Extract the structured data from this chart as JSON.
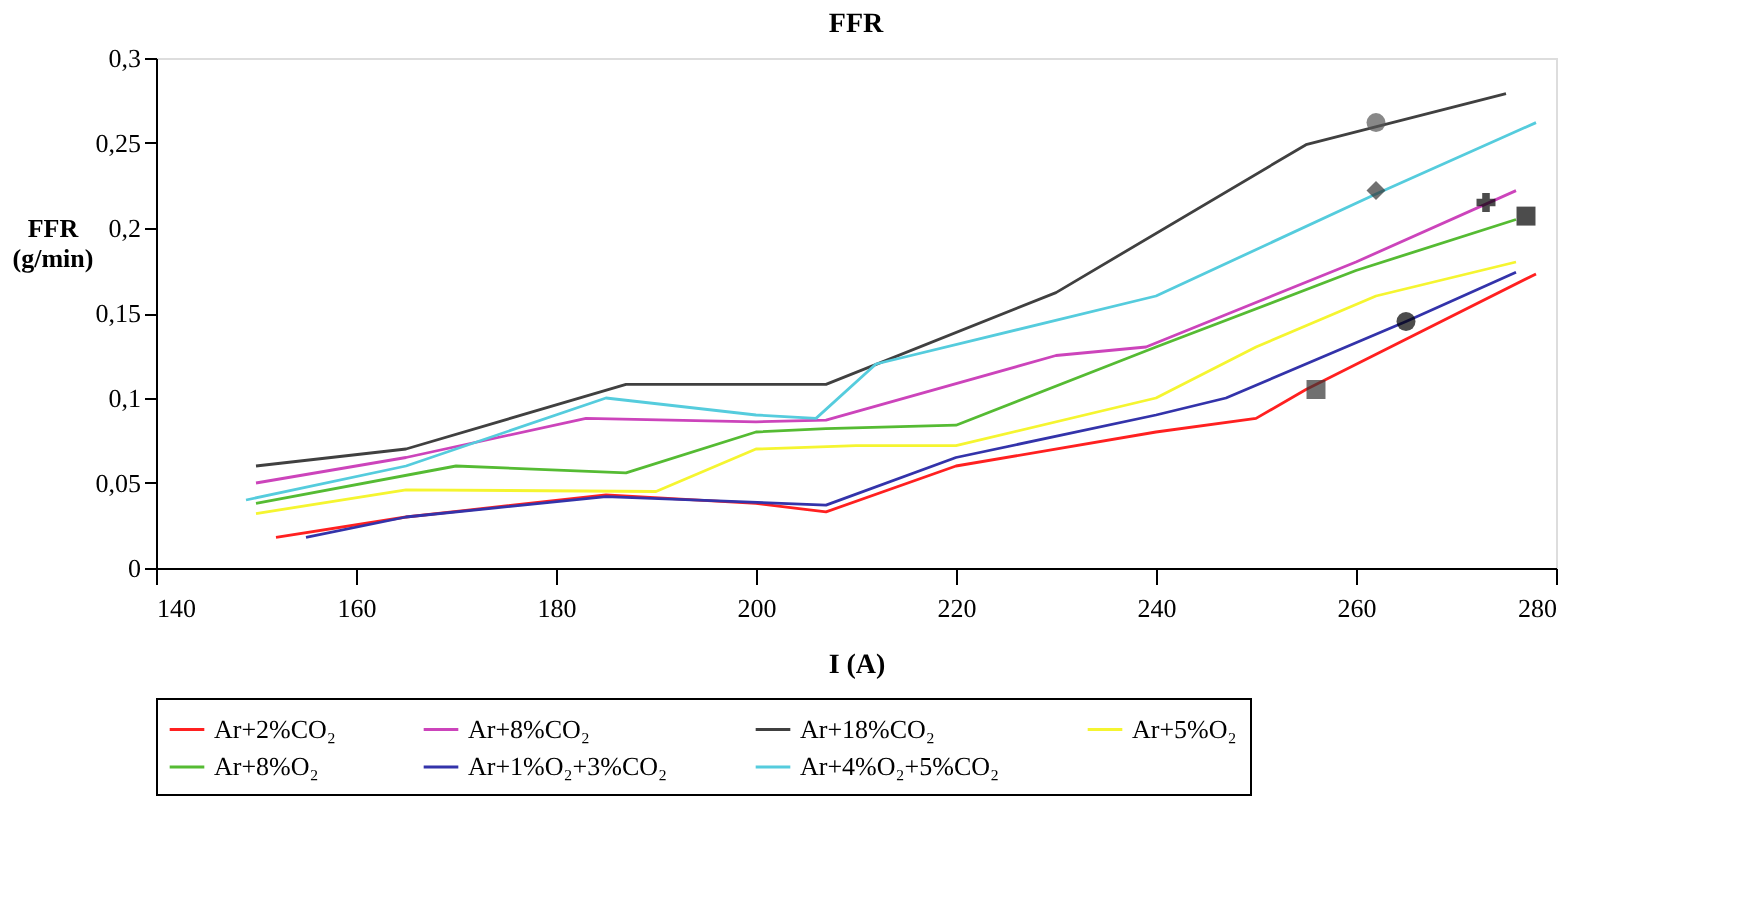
{
  "chart_data": {
    "type": "line",
    "title": "FFR",
    "xlabel": "I (A)",
    "ylabel": "FFR (g/min)",
    "xlim": [
      140,
      280
    ],
    "xticks": [
      140,
      160,
      180,
      200,
      220,
      240,
      260,
      280
    ],
    "ylim": [
      0,
      0.3
    ],
    "yticks": [
      0,
      {
        "value": 0.05,
        "label": "0,05"
      },
      {
        "value": 0.1,
        "label": "0,1"
      },
      {
        "value": 0.15,
        "label": "0,15"
      },
      {
        "value": 0.2,
        "label": "0,2"
      },
      {
        "value": 0.25,
        "label": "0,25"
      },
      {
        "value": 0.3,
        "label": "0,3"
      }
    ],
    "grid": false,
    "legend": "bottom",
    "line_style": "solid",
    "series": [
      {
        "name": "Ar+2%CO₂",
        "color": "#ff2020",
        "x": [
          152,
          165,
          185,
          200,
          207,
          220,
          240,
          250,
          255,
          278
        ],
        "values": [
          0.018,
          0.03,
          0.043,
          0.038,
          0.033,
          0.06,
          0.08,
          0.088,
          0.105,
          0.173
        ]
      },
      {
        "name": "Ar+8%CO₂",
        "color": "#cc44bb",
        "x": [
          150,
          165,
          183,
          200,
          207,
          230,
          239,
          260,
          276
        ],
        "values": [
          0.05,
          0.065,
          0.088,
          0.086,
          0.087,
          0.125,
          0.13,
          0.18,
          0.222
        ]
      },
      {
        "name": "Ar+18%CO₂",
        "color": "#404040",
        "x": [
          150,
          165,
          187,
          207,
          230,
          255,
          275
        ],
        "values": [
          0.06,
          0.07,
          0.108,
          0.108,
          0.162,
          0.249,
          0.279
        ]
      },
      {
        "name": "Ar+5%O₂",
        "color": "#f5f530",
        "x": [
          150,
          165,
          190,
          200,
          210,
          220,
          240,
          250,
          262,
          276
        ],
        "values": [
          0.032,
          0.046,
          0.045,
          0.07,
          0.072,
          0.072,
          0.1,
          0.13,
          0.16,
          0.18
        ]
      },
      {
        "name": "Ar+8%O₂",
        "color": "#55bb33",
        "x": [
          150,
          170,
          187,
          200,
          207,
          220,
          240,
          260,
          276
        ],
        "values": [
          0.038,
          0.06,
          0.056,
          0.08,
          0.082,
          0.084,
          0.13,
          0.175,
          0.205
        ]
      },
      {
        "name": "Ar+1%O₂+3%CO₂",
        "color": "#3333aa",
        "x": [
          155,
          165,
          185,
          207,
          220,
          240,
          247,
          265,
          276
        ],
        "values": [
          0.018,
          0.03,
          0.042,
          0.037,
          0.065,
          0.09,
          0.1,
          0.145,
          0.174
        ]
      },
      {
        "name": "Ar+4%O₂+5%CO₂",
        "color": "#55ccdd",
        "x": [
          149,
          165,
          185,
          200,
          206,
          212,
          240,
          262,
          278
        ],
        "values": [
          0.04,
          0.06,
          0.1,
          0.09,
          0.088,
          0.12,
          0.16,
          0.22,
          0.262
        ]
      },
      {
        "type": "scatter",
        "color": "#333333",
        "marker": "square",
        "x": [
          256
        ],
        "values": [
          0.105
        ]
      },
      {
        "type": "scatter",
        "color": "#000000",
        "marker": "cross",
        "x": [
          273
        ],
        "values": [
          0.215
        ]
      },
      {
        "type": "scatter",
        "color": "#555555",
        "marker": "circle",
        "x": [
          262
        ],
        "values": [
          0.262
        ]
      },
      {
        "type": "scatter",
        "color": "#000000",
        "marker": "square",
        "x": [
          277
        ],
        "values": [
          0.207
        ]
      },
      {
        "type": "scatter",
        "color": "#000000",
        "marker": "circle",
        "x": [
          265
        ],
        "values": [
          0.145
        ]
      },
      {
        "type": "scatter",
        "color": "#333333",
        "marker": "diamond",
        "x": [
          262
        ],
        "values": [
          0.222
        ]
      }
    ]
  }
}
